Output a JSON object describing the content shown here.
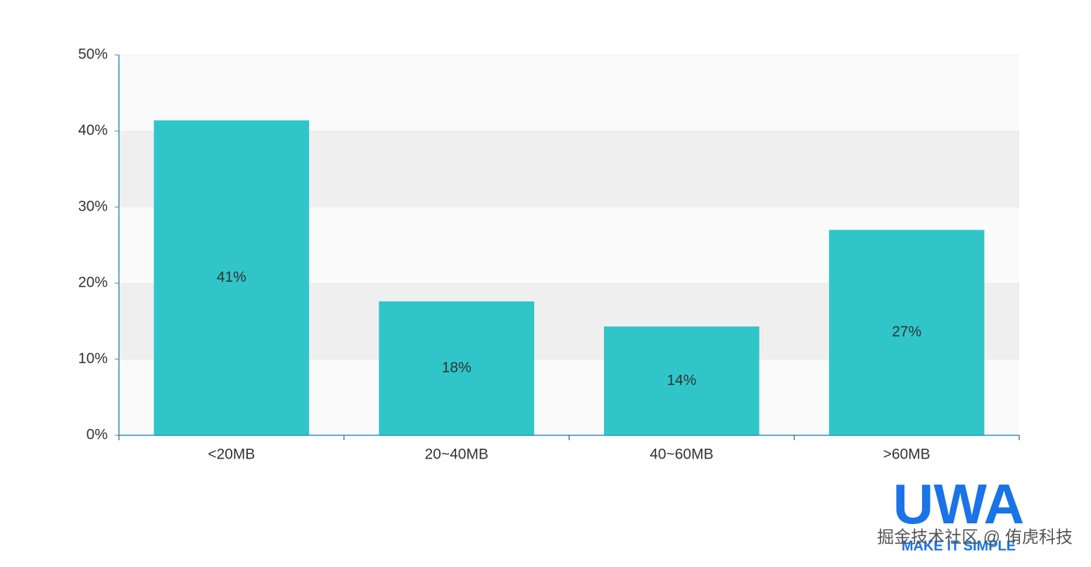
{
  "chart_data": {
    "type": "bar",
    "categories": [
      "<20MB",
      "20~40MB",
      "40~60MB",
      ">60MB"
    ],
    "values": [
      41.4,
      17.6,
      14.3,
      27.0
    ],
    "value_labels": [
      "41%",
      "18%",
      "14%",
      "27%"
    ],
    "color": "#30c6c9",
    "ylim": [
      0,
      50
    ],
    "yticks": [
      {
        "value": 0,
        "label": "0%"
      },
      {
        "value": 10,
        "label": "10%"
      },
      {
        "value": 20,
        "label": "20%"
      },
      {
        "value": 30,
        "label": "30%"
      },
      {
        "value": 40,
        "label": "40%"
      },
      {
        "value": 50,
        "label": "50%"
      }
    ],
    "grid": true
  },
  "watermark": {
    "logo": "UWA",
    "tagline": "MAKE IT SIMPLE",
    "credit": "掘金技术社区 @ 侑虎科技"
  }
}
